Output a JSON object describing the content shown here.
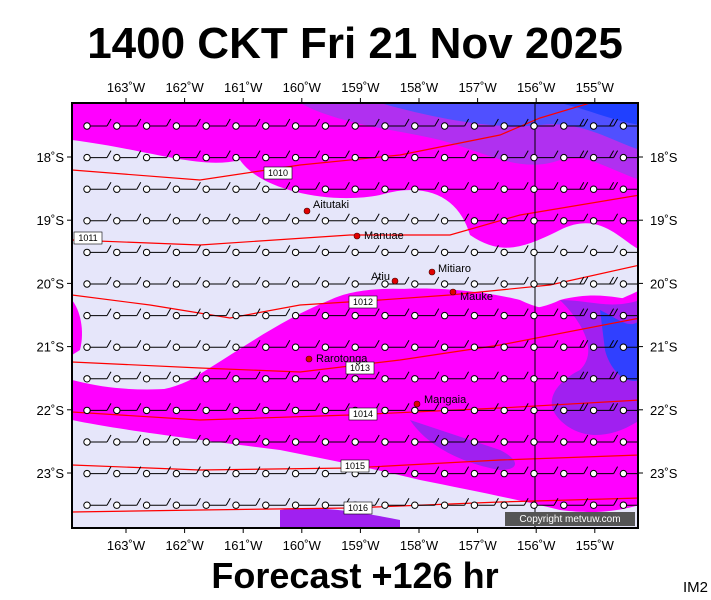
{
  "header": {
    "title": "1400 CKT Fri 21 Nov 2025"
  },
  "footer": {
    "caption": "Forecast +126 hr",
    "image_id": "IM2"
  },
  "map": {
    "longitude_labels": [
      "163˚W",
      "162˚W",
      "161˚W",
      "160˚W",
      "159˚W",
      "158˚W",
      "157˚W",
      "156˚W",
      "155˚W"
    ],
    "latitude_labels": [
      "18˚S",
      "19˚S",
      "20˚S",
      "21˚S",
      "22˚S",
      "23˚S"
    ],
    "places": [
      {
        "name": "Aitutaki"
      },
      {
        "name": "Manuae"
      },
      {
        "name": "Atiu"
      },
      {
        "name": "Mitiaro"
      },
      {
        "name": "Mauke"
      },
      {
        "name": "Rarotonga"
      },
      {
        "name": "Mangaia"
      }
    ],
    "isobar_labels": [
      "1010",
      "1011",
      "1012",
      "1013",
      "1014",
      "1015",
      "1016"
    ],
    "copyright": "Copyright metvuw.com"
  }
}
